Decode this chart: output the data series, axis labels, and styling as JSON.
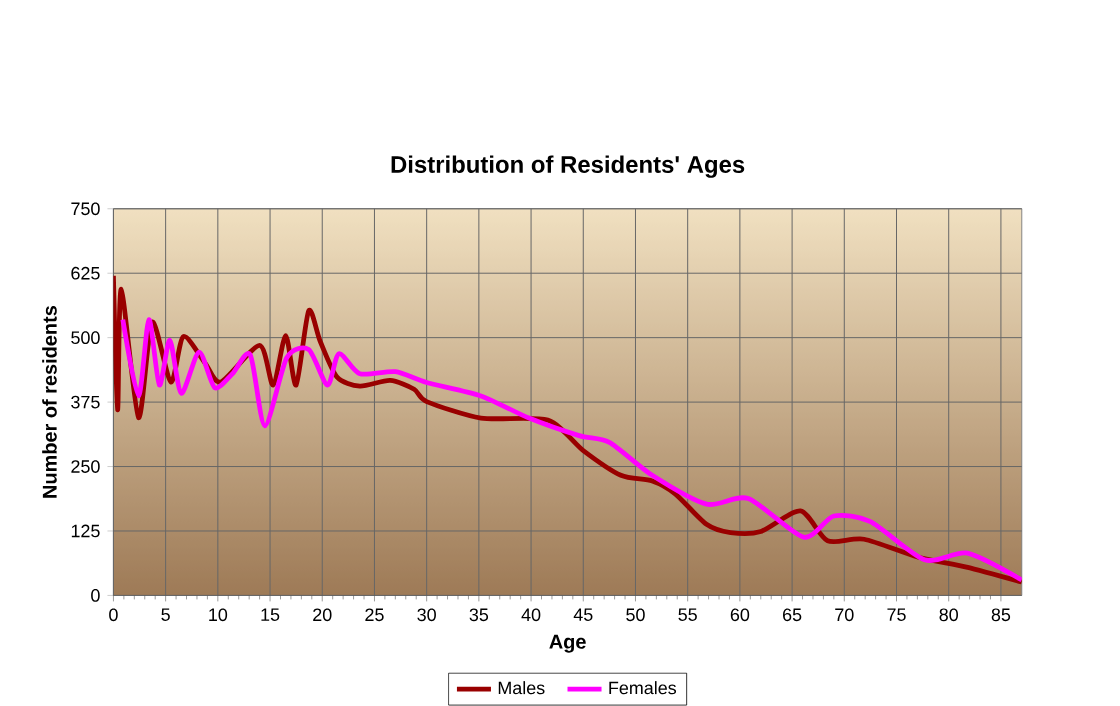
{
  "chart_data": {
    "type": "line",
    "title": "Distribution of Residents' Ages",
    "xlabel": "Age",
    "ylabel": "Number of residents",
    "xlim": [
      0,
      87
    ],
    "ylim": [
      0,
      750
    ],
    "xticks": [
      0,
      5,
      10,
      15,
      20,
      25,
      30,
      35,
      40,
      45,
      50,
      55,
      60,
      65,
      70,
      75,
      80,
      85
    ],
    "yticks": [
      0,
      125,
      250,
      375,
      500,
      625,
      750
    ],
    "grid": true,
    "legend": "bottom",
    "line_style": "solid",
    "marker": "none",
    "series": [
      {
        "name": "Males",
        "color": "#990000",
        "x": [
          0,
          0.4,
          0.75,
          2.4,
          3.7,
          5.5,
          6.7,
          8.8,
          10.3,
          14,
          15.3,
          16.5,
          17.5,
          18.7,
          19.8,
          21.4,
          23.6,
          26.5,
          28.8,
          30,
          35.2,
          41.6,
          45,
          48.6,
          51.6,
          53.8,
          56.8,
          59.1,
          62,
          65.8,
          68.4,
          71.9,
          77.1,
          81.7,
          87
        ],
        "values": [
          620,
          360,
          594,
          345,
          530,
          414,
          502,
          450,
          414,
          485,
          408,
          504,
          408,
          552,
          493,
          424,
          406,
          417,
          400,
          376,
          344,
          340,
          281,
          233,
          222,
          197,
          138,
          122,
          124,
          164,
          106,
          109,
          74,
          55,
          26
        ]
      },
      {
        "name": "Females",
        "color": "#ff00ff",
        "x": [
          0.9,
          2.4,
          3.4,
          4.4,
          5.4,
          6.5,
          8.2,
          9.7,
          11.4,
          13.1,
          14.5,
          16.6,
          18.7,
          20.5,
          21.6,
          23.6,
          27,
          30,
          35.2,
          39.8,
          44.6,
          47.5,
          51.6,
          56.8,
          60.8,
          66.1,
          69,
          72.5,
          77.7,
          81.8,
          87
        ],
        "values": [
          535,
          387,
          535,
          408,
          495,
          392,
          472,
          403,
          430,
          467,
          329,
          461,
          477,
          408,
          469,
          430,
          434,
          413,
          387,
          344,
          310,
          297,
          233,
          177,
          188,
          113,
          154,
          143,
          69,
          82,
          30
        ]
      }
    ]
  }
}
